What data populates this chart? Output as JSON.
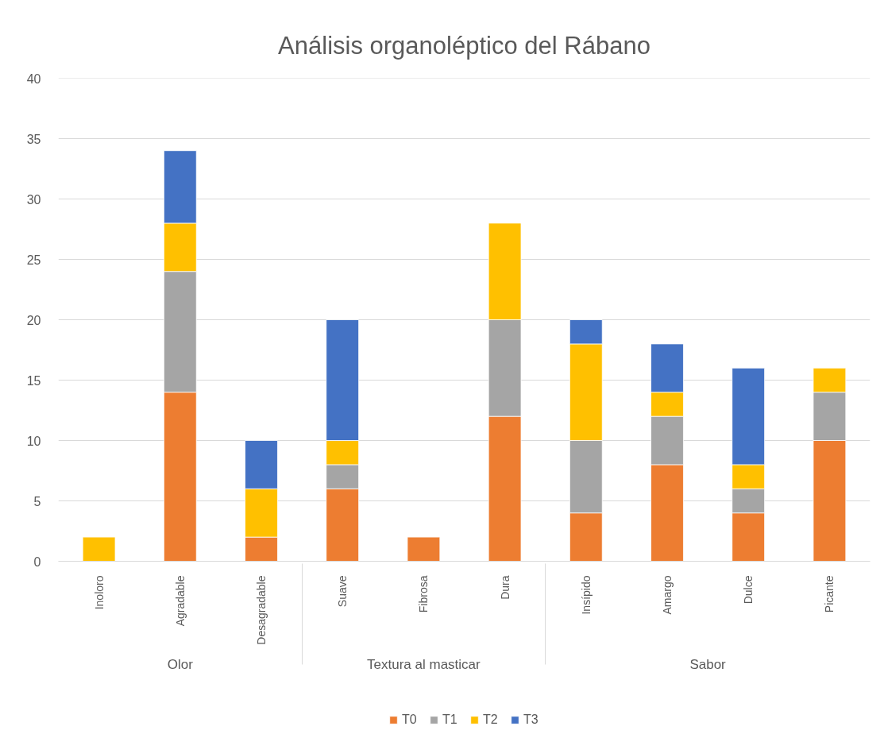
{
  "chart_data": {
    "type": "bar",
    "title": "Análisis organoléptico del Rábano",
    "stacked": true,
    "categories": [
      [
        "Olor",
        "Inoloro"
      ],
      [
        null,
        "Agradable"
      ],
      [
        null,
        "Desagradable"
      ],
      [
        "Textura al masticar",
        "Suave"
      ],
      [
        null,
        "Fibrosa"
      ],
      [
        null,
        "Dura"
      ],
      [
        "Sabor",
        "Insípido"
      ],
      [
        null,
        "Amargo"
      ],
      [
        null,
        "Dulce"
      ],
      [
        null,
        "Picante"
      ]
    ],
    "series": [
      {
        "name": "T0",
        "color": "#ed7d31",
        "values": [
          null,
          14,
          2,
          6,
          2,
          12,
          4,
          8,
          4,
          10
        ]
      },
      {
        "name": "T1",
        "color": "#a5a5a5",
        "values": [
          null,
          10,
          null,
          2,
          null,
          8,
          6,
          4,
          2,
          4
        ]
      },
      {
        "name": "T2",
        "color": "#ffc000",
        "values": [
          2,
          4,
          4,
          2,
          null,
          8,
          8,
          2,
          2,
          2
        ]
      },
      {
        "name": "T3",
        "color": "#4472c4",
        "values": [
          null,
          6,
          4,
          10,
          null,
          null,
          2,
          4,
          8,
          null
        ]
      }
    ],
    "ylim": [
      0,
      40
    ],
    "yticks": [
      0,
      5,
      10,
      15,
      20,
      25,
      30,
      35,
      40
    ],
    "grid": "y",
    "legend": "bottom"
  }
}
